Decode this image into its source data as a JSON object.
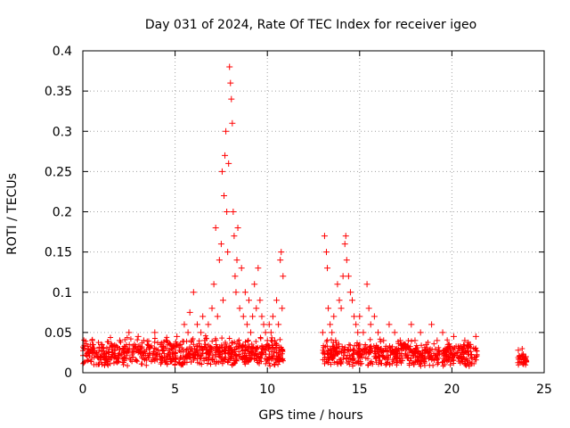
{
  "chart_data": {
    "type": "scatter",
    "title": "Day 031 of 2024, Rate Of TEC Index for receiver igeo",
    "xlabel": "GPS time / hours",
    "ylabel": "ROTI / TECUs",
    "xlim": [
      0,
      25
    ],
    "ylim": [
      0,
      0.4
    ],
    "xticks": [
      "0",
      "5",
      "10",
      "15",
      "20",
      "25"
    ],
    "yticks": [
      "0",
      "0.05",
      "0.1",
      "0.15",
      "0.2",
      "0.25",
      "0.3",
      "0.35",
      "0.4"
    ],
    "grid": true,
    "marker": "plus",
    "color": "#ff0000",
    "series": [
      {
        "x": [
          0.1,
          0.3,
          0.5,
          0.8,
          1.0,
          1.3,
          1.6,
          2.0,
          2.3,
          2.5,
          2.8,
          3.0,
          3.3,
          3.6,
          3.9,
          4.2,
          4.5,
          4.8,
          5.1,
          5.3,
          5.5,
          5.7,
          5.8,
          5.9,
          6.0,
          6.2,
          6.4,
          6.5,
          6.6,
          6.8,
          7.0,
          7.1,
          7.2,
          7.3,
          7.4,
          7.5,
          7.55,
          7.6,
          7.65,
          7.7,
          7.75,
          7.8,
          7.85,
          7.9,
          7.95,
          8.0,
          8.05,
          8.1,
          8.15,
          8.2,
          8.25,
          8.3,
          8.35,
          8.4,
          8.5,
          8.6,
          8.7,
          8.8,
          8.9,
          9.0,
          9.1,
          9.2,
          9.3,
          9.4,
          9.5,
          9.6,
          9.7,
          9.8,
          9.9,
          10.0,
          10.1,
          10.2,
          10.3,
          10.4,
          10.5,
          10.6,
          10.7,
          10.75,
          10.8,
          10.85,
          13.0,
          13.1,
          13.2,
          13.25,
          13.3,
          13.4,
          13.5,
          13.6,
          13.7,
          13.8,
          13.9,
          14.0,
          14.1,
          14.2,
          14.25,
          14.3,
          14.4,
          14.5,
          14.6,
          14.7,
          14.8,
          14.9,
          15.0,
          15.2,
          15.4,
          15.5,
          15.6,
          15.8,
          16.0,
          16.3,
          16.6,
          16.9,
          17.2,
          17.5,
          17.8,
          18.0,
          18.3,
          18.6,
          18.9,
          19.2,
          19.5,
          19.8,
          20.1,
          20.4,
          20.7,
          21.0,
          21.3,
          23.6,
          23.8,
          24.0
        ],
        "y": [
          0.03,
          0.025,
          0.04,
          0.02,
          0.035,
          0.03,
          0.025,
          0.04,
          0.03,
          0.05,
          0.035,
          0.045,
          0.04,
          0.03,
          0.05,
          0.035,
          0.04,
          0.03,
          0.045,
          0.035,
          0.06,
          0.05,
          0.075,
          0.04,
          0.1,
          0.06,
          0.05,
          0.07,
          0.04,
          0.06,
          0.08,
          0.11,
          0.18,
          0.07,
          0.14,
          0.16,
          0.25,
          0.09,
          0.22,
          0.27,
          0.3,
          0.2,
          0.15,
          0.26,
          0.38,
          0.36,
          0.34,
          0.31,
          0.2,
          0.17,
          0.12,
          0.1,
          0.14,
          0.18,
          0.08,
          0.13,
          0.07,
          0.1,
          0.06,
          0.09,
          0.05,
          0.07,
          0.11,
          0.08,
          0.13,
          0.09,
          0.07,
          0.06,
          0.05,
          0.04,
          0.06,
          0.05,
          0.07,
          0.04,
          0.09,
          0.06,
          0.14,
          0.15,
          0.08,
          0.12,
          0.05,
          0.17,
          0.15,
          0.13,
          0.08,
          0.06,
          0.05,
          0.07,
          0.04,
          0.11,
          0.09,
          0.08,
          0.12,
          0.16,
          0.17,
          0.14,
          0.12,
          0.1,
          0.09,
          0.07,
          0.06,
          0.05,
          0.07,
          0.05,
          0.11,
          0.08,
          0.06,
          0.07,
          0.05,
          0.04,
          0.06,
          0.05,
          0.04,
          0.03,
          0.06,
          0.04,
          0.05,
          0.035,
          0.06,
          0.04,
          0.05,
          0.035,
          0.045,
          0.03,
          0.04,
          0.035,
          0.045,
          0.028,
          0.022,
          0.02
        ]
      }
    ]
  }
}
